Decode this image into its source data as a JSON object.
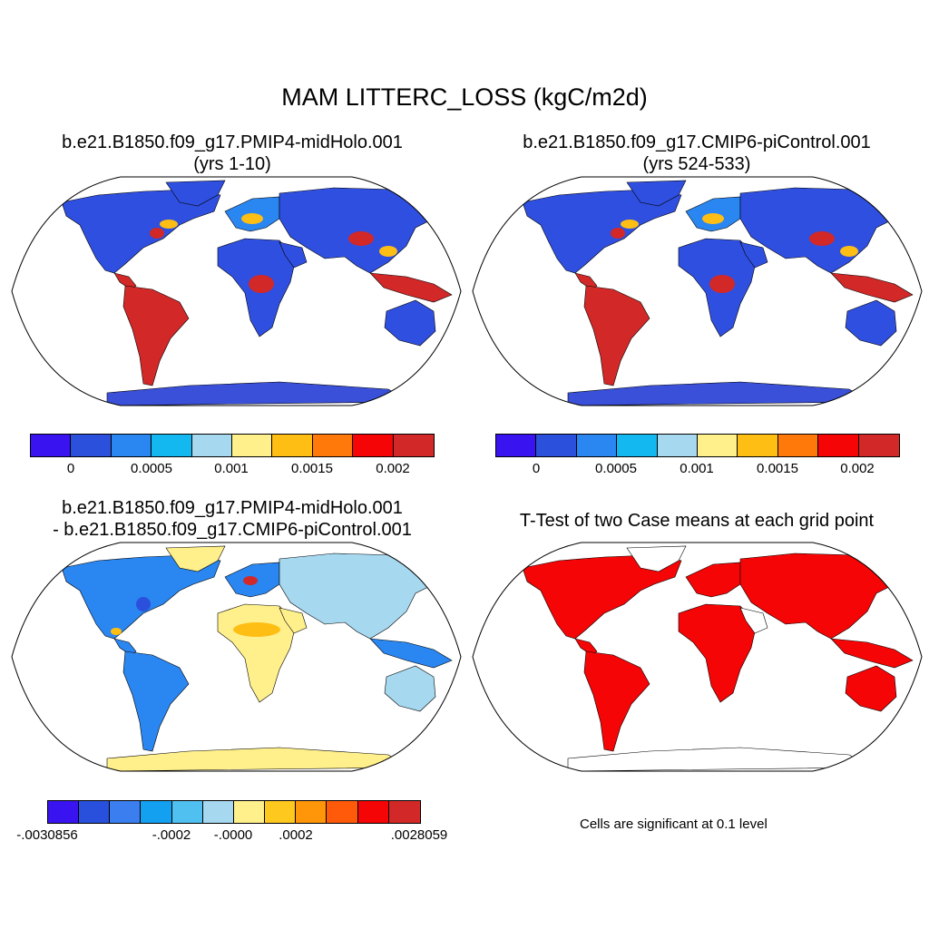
{
  "title": "MAM LITTERC_LOSS (kgC/m2d)",
  "panels": [
    {
      "id": "p1",
      "line1": "b.e21.B1850.f09_g17.PMIP4-midHolo.001",
      "line2": "(yrs 1-10)"
    },
    {
      "id": "p2",
      "line1": "b.e21.B1850.f09_g17.CMIP6-piControl.001",
      "line2": "(yrs 524-533)"
    },
    {
      "id": "p3",
      "line1": "b.e21.B1850.f09_g17.PMIP4-midHolo.001",
      "line2": "- b.e21.B1850.f09_g17.CMIP6-piControl.001"
    },
    {
      "id": "p4",
      "line1": "T-Test of two Case means at each grid point",
      "line2": ""
    }
  ],
  "colorbar_top": {
    "colors": [
      "#3a14f0",
      "#2a50dc",
      "#2a86f0",
      "#14b8f0",
      "#a6d8ef",
      "#fff08c",
      "#ffbe14",
      "#ff780a",
      "#f50505",
      "#d22828"
    ],
    "labels": [
      "0",
      "0.0005",
      "0.001",
      "0.0015",
      "0.002"
    ]
  },
  "colorbar_diff": {
    "colors": [
      "#3a14f0",
      "#2850dc",
      "#3a7ef0",
      "#14a0f0",
      "#50c0f0",
      "#a6d8ef",
      "#fff08c",
      "#ffc81e",
      "#ff960a",
      "#ff5a0a",
      "#f50505",
      "#d22828"
    ],
    "labels": [
      ".0030856",
      ".0002",
      ".0000",
      ".0002",
      ".0028059"
    ],
    "label_signs": [
      "-",
      "-",
      "-",
      "",
      ""
    ]
  },
  "ttest_note": "Cells are significant at 0.1 level",
  "map_colors": {
    "ocean": "#ffffff",
    "land_low": "#2f4fe0",
    "land_mid": "#2a86f0",
    "land_hot": "#ffbe14",
    "land_peak": "#d22828",
    "diff_land": "#a6d8ef",
    "diff_pos": "#fff08c",
    "signif": "#f50505",
    "antarctica": "#3a50d8"
  }
}
